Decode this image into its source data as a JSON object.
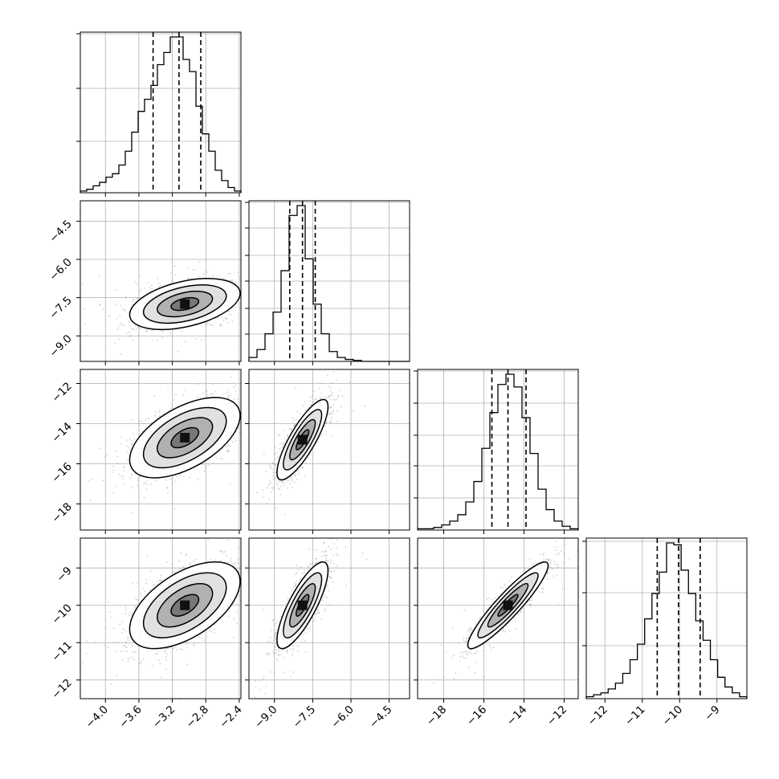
{
  "chart_data": {
    "type": "corner",
    "description_free": true,
    "grid": true,
    "parameters": [
      {
        "range": [
          -4.3,
          -2.38
        ],
        "ticks": [
          -4.0,
          -3.6,
          -3.2,
          -2.8,
          -2.4
        ],
        "tick_labels": [
          "−4.0",
          "−3.6",
          "−3.2",
          "−2.8",
          "−2.4"
        ],
        "quantiles": [
          -3.43,
          -3.12,
          -2.86
        ],
        "hist_counts": [
          1,
          2,
          4,
          6,
          9,
          11,
          16,
          24,
          35,
          47,
          54,
          62,
          74,
          81,
          90,
          90,
          77,
          70,
          50,
          34,
          24,
          13,
          7,
          3,
          1
        ],
        "hist_yticks_frac": [
          0.32,
          0.65,
          0.99
        ]
      },
      {
        "range": [
          -10.0,
          -3.7
        ],
        "ticks": [
          -9.0,
          -7.5,
          -6.0,
          -4.5
        ],
        "tick_labels": [
          "−9.0",
          "−7.5",
          "−6.0",
          "−4.5"
        ],
        "quantiles": [
          -8.4,
          -7.9,
          -7.4
        ],
        "hist_counts": [
          4,
          12,
          28,
          50,
          92,
          148,
          158,
          104,
          58,
          28,
          10,
          4,
          2,
          1,
          0,
          0,
          0,
          0,
          0,
          0
        ],
        "hist_yticks_frac": [
          0.17,
          0.33,
          0.5,
          0.66,
          0.83,
          0.99
        ]
      },
      {
        "range": [
          -19.3,
          -11.3
        ],
        "ticks": [
          -18,
          -16,
          -14,
          -12
        ],
        "tick_labels": [
          "−18",
          "−16",
          "−14",
          "−12"
        ],
        "quantiles": [
          -15.6,
          -14.8,
          -13.9
        ],
        "hist_counts": [
          1,
          1,
          2,
          4,
          7,
          12,
          22,
          38,
          64,
          92,
          114,
          122,
          112,
          88,
          60,
          32,
          16,
          7,
          3,
          1
        ],
        "hist_yticks_frac": [
          0.2,
          0.4,
          0.59,
          0.79,
          0.99
        ]
      },
      {
        "range": [
          -12.5,
          -8.2
        ],
        "ticks": [
          -12,
          -11,
          -10,
          -9
        ],
        "tick_labels": [
          "−12",
          "−11",
          "−10",
          "−9"
        ],
        "quantiles": [
          -10.6,
          -10.03,
          -9.45
        ],
        "hist_counts": [
          1,
          2,
          3,
          5,
          8,
          13,
          20,
          28,
          41,
          54,
          65,
          80,
          79,
          66,
          54,
          40,
          30,
          20,
          11,
          6,
          3,
          1
        ],
        "hist_yticks_frac": [
          0.33,
          0.66,
          0.98
        ]
      }
    ],
    "pairs": [
      {
        "row": 1,
        "col": 0,
        "mean": [
          -3.05,
          -7.75
        ],
        "sd": [
          0.33,
          0.5
        ],
        "rho": 0.42
      },
      {
        "row": 2,
        "col": 0,
        "mean": [
          -3.05,
          -14.7
        ],
        "sd": [
          0.33,
          1.0
        ],
        "rho": 0.55
      },
      {
        "row": 2,
        "col": 1,
        "mean": [
          -7.9,
          -14.8
        ],
        "sd": [
          0.5,
          1.0
        ],
        "rho": 0.82
      },
      {
        "row": 3,
        "col": 0,
        "mean": [
          -3.05,
          -10.0
        ],
        "sd": [
          0.33,
          0.58
        ],
        "rho": 0.55
      },
      {
        "row": 3,
        "col": 1,
        "mean": [
          -7.9,
          -10.0
        ],
        "sd": [
          0.5,
          0.58
        ],
        "rho": 0.8
      },
      {
        "row": 3,
        "col": 2,
        "mean": [
          -14.8,
          -10.0
        ],
        "sd": [
          1.0,
          0.58
        ],
        "rho": 0.92
      }
    ],
    "contour_levels_sigma": [
      0.5,
      1.0,
      1.5,
      2.0
    ]
  }
}
